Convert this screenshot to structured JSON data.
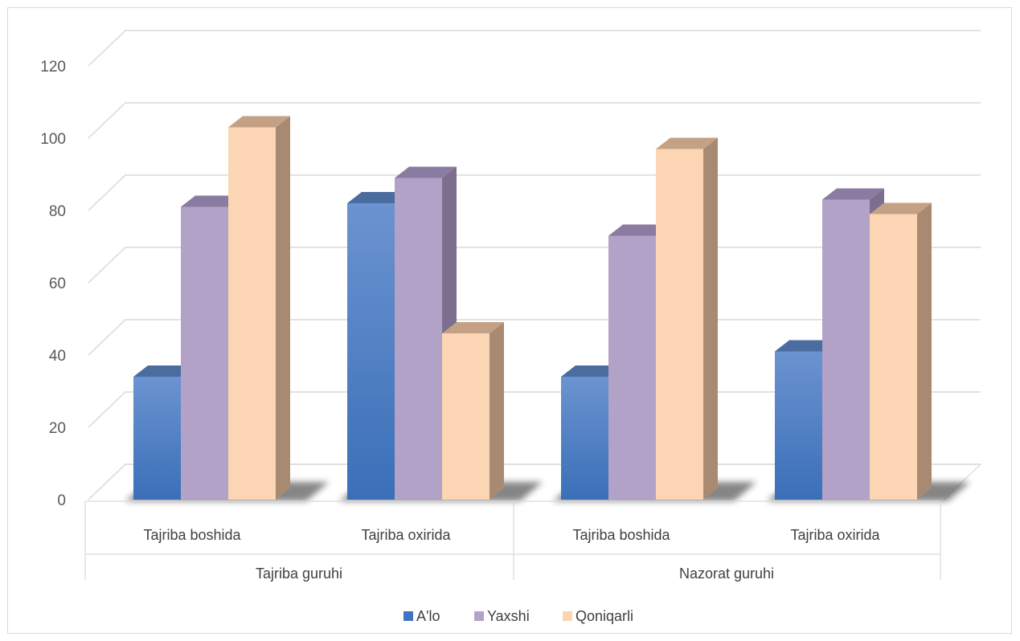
{
  "chart_data": {
    "type": "bar",
    "style": "3d-clustered-column",
    "title": "",
    "xlabel": "",
    "ylabel": "",
    "ylim": [
      0,
      120
    ],
    "yticks": [
      "0",
      "20",
      "40",
      "60",
      "80",
      "100",
      "120"
    ],
    "groups": [
      {
        "label": "Tajriba guruhi",
        "categories": [
          "Tajriba boshida",
          "Tajriba oxirida"
        ]
      },
      {
        "label": "Nazorat guruhi",
        "categories": [
          "Tajriba boshida",
          "Tajriba oxirida"
        ]
      }
    ],
    "categories": [
      "Tajriba boshida",
      "Tajriba oxirida",
      "Tajriba boshida",
      "Tajriba oxirida"
    ],
    "series": [
      {
        "name": "A'lo",
        "values": [
          34,
          82,
          34,
          41
        ]
      },
      {
        "name": "Yaxshi",
        "values": [
          81,
          89,
          73,
          83
        ]
      },
      {
        "name": "Qoniqarli",
        "values": [
          103,
          46,
          97,
          79
        ]
      }
    ],
    "grid": true,
    "legend": "bottom"
  },
  "colors": {
    "A'lo": "#4f81c7",
    "Yaxshi": "#b3a2c7",
    "Qoniqarli": "#fcd5b4",
    "grid": "#d9d9d9",
    "axis_text": "#595959"
  }
}
